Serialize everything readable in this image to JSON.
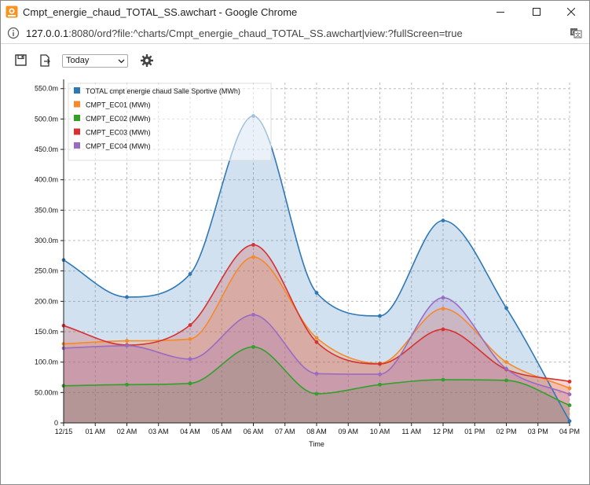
{
  "window": {
    "title": "Cmpt_energie_chaud_TOTAL_SS.awchart - Google Chrome",
    "minimize_icon": "minimize-icon",
    "maximize_icon": "maximize-icon",
    "close_icon": "close-icon"
  },
  "address": {
    "host": "127.0.0.1",
    "path": ":8080/ord?file:^charts/Cmpt_energie_chaud_TOTAL_SS.awchart|view:?fullScreen=true"
  },
  "toolbar": {
    "save_icon": "save-icon",
    "export_icon": "export-icon",
    "settings_icon": "gear-icon",
    "range_value": "Today"
  },
  "chart_data": {
    "type": "area",
    "xlabel": "Time",
    "ylabel": "",
    "ylim": [
      0,
      560
    ],
    "yticks": [
      "0",
      "50.00m",
      "100.0m",
      "150.0m",
      "200.0m",
      "250.0m",
      "300.0m",
      "350.0m",
      "400.0m",
      "450.0m",
      "500.0m",
      "550.0m"
    ],
    "x_tick_labels": [
      "12/15",
      "01 AM",
      "02 AM",
      "03 AM",
      "04 AM",
      "05 AM",
      "06 AM",
      "07 AM",
      "08 AM",
      "09 AM",
      "10 AM",
      "11 AM",
      "12 PM",
      "01 PM",
      "02 PM",
      "03 PM",
      "04 PM"
    ],
    "x_hours": [
      0,
      2,
      4,
      6,
      8,
      10,
      12,
      14,
      16
    ],
    "grid": true,
    "legend_position": "top-left",
    "series": [
      {
        "name": "TOTAL cmpt energie chaud Salle Sportive (MWh)",
        "color": "#2e78b6",
        "values": [
          268,
          207,
          245,
          505,
          214,
          176,
          333,
          189,
          3
        ]
      },
      {
        "name": "CMPT_EC01 (MWh)",
        "color": "#f58a2c",
        "values": [
          130,
          135,
          138,
          273,
          140,
          98,
          188,
          100,
          57
        ]
      },
      {
        "name": "CMPT_EC02 (MWh)",
        "color": "#33a02c",
        "values": [
          61,
          63,
          65,
          125,
          48,
          63,
          71,
          70,
          29
        ]
      },
      {
        "name": "CMPT_EC03 (MWh)",
        "color": "#d63232",
        "values": [
          160,
          128,
          161,
          293,
          133,
          97,
          154,
          88,
          68
        ]
      },
      {
        "name": "CMPT_EC04 (MWh)",
        "color": "#9a6bc3",
        "values": [
          123,
          127,
          105,
          178,
          81,
          80,
          206,
          89,
          47
        ]
      }
    ]
  }
}
